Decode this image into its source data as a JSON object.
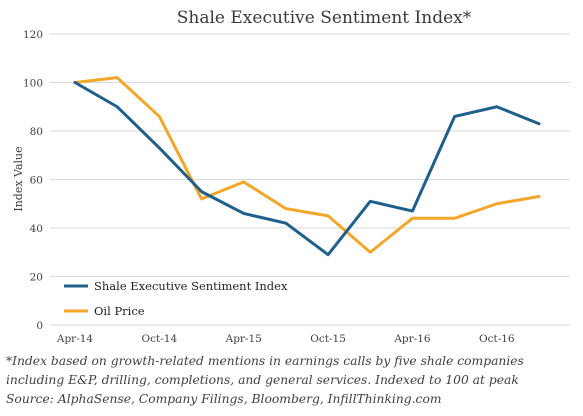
{
  "chart_data": {
    "type": "line",
    "title": "Shale Executive Sentiment Index*",
    "ylabel": "Index Value",
    "xlabel": "",
    "ylim": [
      0,
      120
    ],
    "yticks": [
      "0",
      "20",
      "40",
      "60",
      "80",
      "100",
      "120"
    ],
    "x": [
      "Q2-14",
      "Q3-14",
      "Q4-14",
      "Q1-15",
      "Q2-15",
      "Q3-15",
      "Q4-15",
      "Q1-16",
      "Q2-16",
      "Q3-16",
      "Q4-16",
      "Q1-17"
    ],
    "xtick_labels": [
      "Apr-14",
      "Oct-14",
      "Apr-15",
      "Oct-15",
      "Apr-16",
      "Oct-16"
    ],
    "grid": "horizontal",
    "legend_position": "lower-left",
    "series": [
      {
        "name": "Shale Executive Sentiment Index",
        "color": "#1f5f8b",
        "values": [
          100,
          90,
          73,
          55,
          46,
          42,
          29,
          51,
          47,
          86,
          90,
          83
        ]
      },
      {
        "name": "Oil Price",
        "color": "#f2a72b",
        "values": [
          100,
          102,
          86,
          52,
          59,
          48,
          45,
          30,
          44,
          44,
          50,
          53
        ]
      }
    ]
  },
  "footnote": {
    "lines": [
      "*Index based on growth-related mentions in earnings calls by five shale companies",
      "including E&P, drilling, completions, and general services. Indexed to 100 at peak",
      "Source: AlphaSense, Company Filings, Bloomberg, InfillThinking.com"
    ]
  }
}
